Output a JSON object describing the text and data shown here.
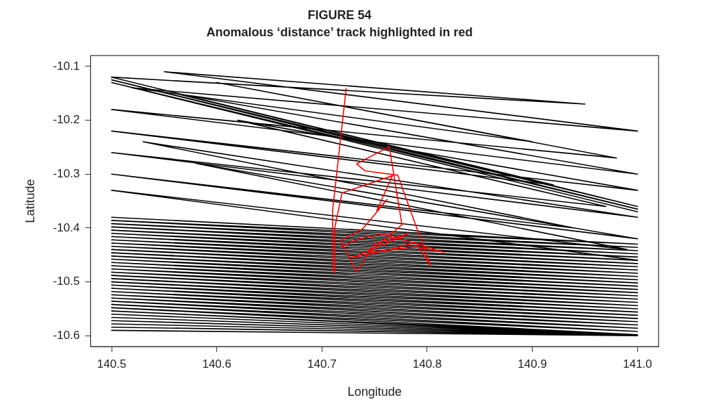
{
  "chart_data": {
    "type": "line",
    "title": "FIGURE 54",
    "subtitle": "Anomalous ‘distance’ track highlighted in red",
    "xlabel": "Longitude",
    "ylabel": "Latitude",
    "xlim": [
      140.48,
      141.02
    ],
    "ylim": [
      -10.62,
      -10.08
    ],
    "xticks": [
      {
        "value": 140.5,
        "label": "140.5"
      },
      {
        "value": 140.6,
        "label": "140.6"
      },
      {
        "value": 140.7,
        "label": "140.7"
      },
      {
        "value": 140.8,
        "label": "140.8"
      },
      {
        "value": 140.9,
        "label": "140.9"
      },
      {
        "value": 141,
        "label": "141.0"
      }
    ],
    "yticks": [
      -10.1,
      -10.2,
      -10.3,
      -10.4,
      -10.5,
      -10.6
    ],
    "grid": false,
    "legend": false,
    "marker": "none",
    "line_style": "solid",
    "series": [
      {
        "color": "#000000",
        "x": [
          140.5,
          140.95,
          140.55,
          141.0,
          140.52,
          140.9,
          140.6,
          140.98,
          140.5,
          141.0,
          140.56,
          140.92,
          140.5,
          141.0,
          140.62,
          140.97,
          140.5,
          141.0,
          140.53,
          140.94,
          140.5,
          141.0,
          140.58,
          140.99,
          140.5,
          141.0
        ],
        "values": [
          -10.12,
          -10.17,
          -10.11,
          -10.22,
          -10.14,
          -10.24,
          -10.13,
          -10.27,
          -10.18,
          -10.3,
          -10.15,
          -10.32,
          -10.22,
          -10.33,
          -10.2,
          -10.36,
          -10.26,
          -10.38,
          -10.24,
          -10.4,
          -10.3,
          -10.42,
          -10.28,
          -10.44,
          -10.33,
          -10.46
        ]
      },
      {
        "color": "#000000",
        "x": [
          140.5,
          141.0,
          140.5,
          141.0,
          140.5,
          141.0
        ],
        "values": [
          -10.12,
          -10.36,
          -10.125,
          -10.365,
          -10.13,
          -10.37
        ]
      },
      {
        "color": "#000000",
        "x": [
          140.5,
          141.0,
          140.5,
          141.0,
          140.5,
          141.0,
          140.5,
          141.0,
          140.5,
          141.0,
          140.5,
          141.0,
          140.5,
          141.0,
          140.5,
          141.0,
          140.5,
          141.0,
          140.5,
          141.0,
          140.5,
          141.0,
          140.5,
          141.0,
          140.5,
          141.0,
          140.5,
          141.0,
          140.5,
          141.0,
          140.5,
          141.0,
          140.5,
          141.0,
          140.5,
          141.0,
          140.5,
          141.0,
          140.5,
          141.0,
          140.5,
          141.0,
          140.5,
          141.0,
          140.5,
          141.0,
          140.5,
          141.0,
          140.5,
          141.0,
          140.5,
          141.0,
          140.5,
          141.0,
          140.5,
          141.0,
          140.5,
          141.0,
          140.5,
          141.0,
          140.5,
          141.0,
          140.5,
          141.0,
          140.5,
          141.0,
          140.5,
          141.0,
          140.5,
          141.0,
          140.5,
          141.0
        ],
        "values": [
          -10.38,
          -10.43,
          -10.386,
          -10.436,
          -10.392,
          -10.442,
          -10.398,
          -10.448,
          -10.404,
          -10.454,
          -10.41,
          -10.46,
          -10.416,
          -10.466,
          -10.422,
          -10.472,
          -10.428,
          -10.478,
          -10.434,
          -10.484,
          -10.44,
          -10.49,
          -10.446,
          -10.496,
          -10.452,
          -10.502,
          -10.458,
          -10.508,
          -10.464,
          -10.514,
          -10.47,
          -10.52,
          -10.476,
          -10.526,
          -10.482,
          -10.532,
          -10.488,
          -10.538,
          -10.494,
          -10.544,
          -10.5,
          -10.55,
          -10.506,
          -10.556,
          -10.512,
          -10.562,
          -10.518,
          -10.568,
          -10.524,
          -10.574,
          -10.53,
          -10.58,
          -10.536,
          -10.586,
          -10.542,
          -10.592,
          -10.548,
          -10.598,
          -10.554,
          -10.6,
          -10.56,
          -10.6,
          -10.566,
          -10.6,
          -10.572,
          -10.6,
          -10.578,
          -10.6,
          -10.584,
          -10.6,
          -10.59,
          -10.6
        ]
      },
      {
        "color": "#ff0000",
        "x": [
          140.723,
          140.71,
          140.71,
          140.712,
          140.712,
          140.719,
          140.767,
          140.752,
          140.762,
          140.739,
          140.718,
          140.733,
          140.749,
          140.782,
          140.728,
          140.769,
          140.789,
          140.803,
          140.772,
          140.741,
          140.733,
          140.764,
          140.776,
          140.745,
          140.789,
          140.816,
          140.759,
          140.735,
          140.718
        ],
        "values": [
          -10.141,
          -10.369,
          -10.477,
          -10.483,
          -10.401,
          -10.335,
          -10.303,
          -10.368,
          -10.347,
          -10.401,
          -10.423,
          -10.482,
          -10.43,
          -10.411,
          -10.455,
          -10.438,
          -10.426,
          -10.47,
          -10.302,
          -10.294,
          -10.281,
          -10.249,
          -10.394,
          -10.445,
          -10.435,
          -10.445,
          -10.411,
          -10.42,
          -10.435
        ]
      }
    ]
  }
}
